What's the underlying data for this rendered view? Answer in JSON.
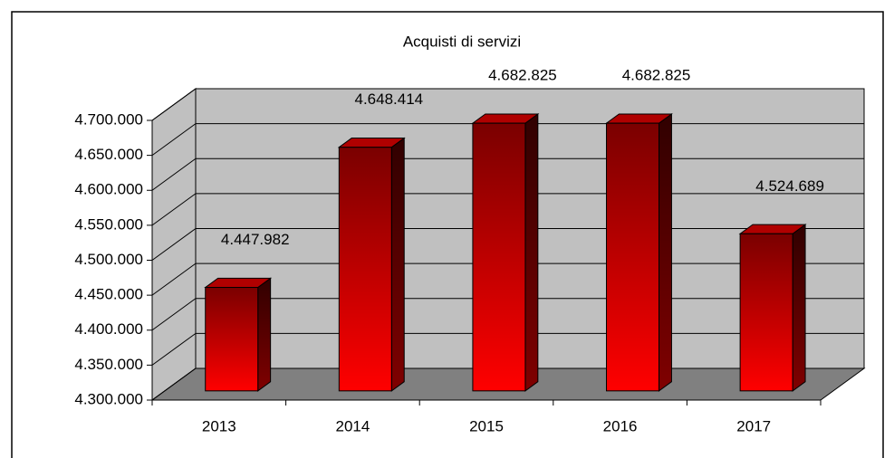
{
  "chart_data": {
    "type": "bar3d",
    "title": "Acquisti di servizi",
    "categories": [
      "2013",
      "2014",
      "2015",
      "2016",
      "2017"
    ],
    "values": [
      4447982,
      4648414,
      4682825,
      4682825,
      4524689
    ],
    "value_labels": [
      "4.447.982",
      "4.648.414",
      "4.682.825",
      "4.682.825",
      "4.524.689"
    ],
    "color": "#ff0000",
    "ylim": [
      4300000,
      4700000
    ],
    "yticks": [
      {
        "value": 4300000,
        "label": "4.300.000"
      },
      {
        "value": 4350000,
        "label": "4.350.000"
      },
      {
        "value": 4400000,
        "label": "4.400.000"
      },
      {
        "value": 4450000,
        "label": "4.450.000"
      },
      {
        "value": 4500000,
        "label": "4.500.000"
      },
      {
        "value": 4550000,
        "label": "4.550.000"
      },
      {
        "value": 4600000,
        "label": "4.600.000"
      },
      {
        "value": 4650000,
        "label": "4.650.000"
      },
      {
        "value": 4700000,
        "label": "4.700.000"
      }
    ],
    "grid": true
  }
}
